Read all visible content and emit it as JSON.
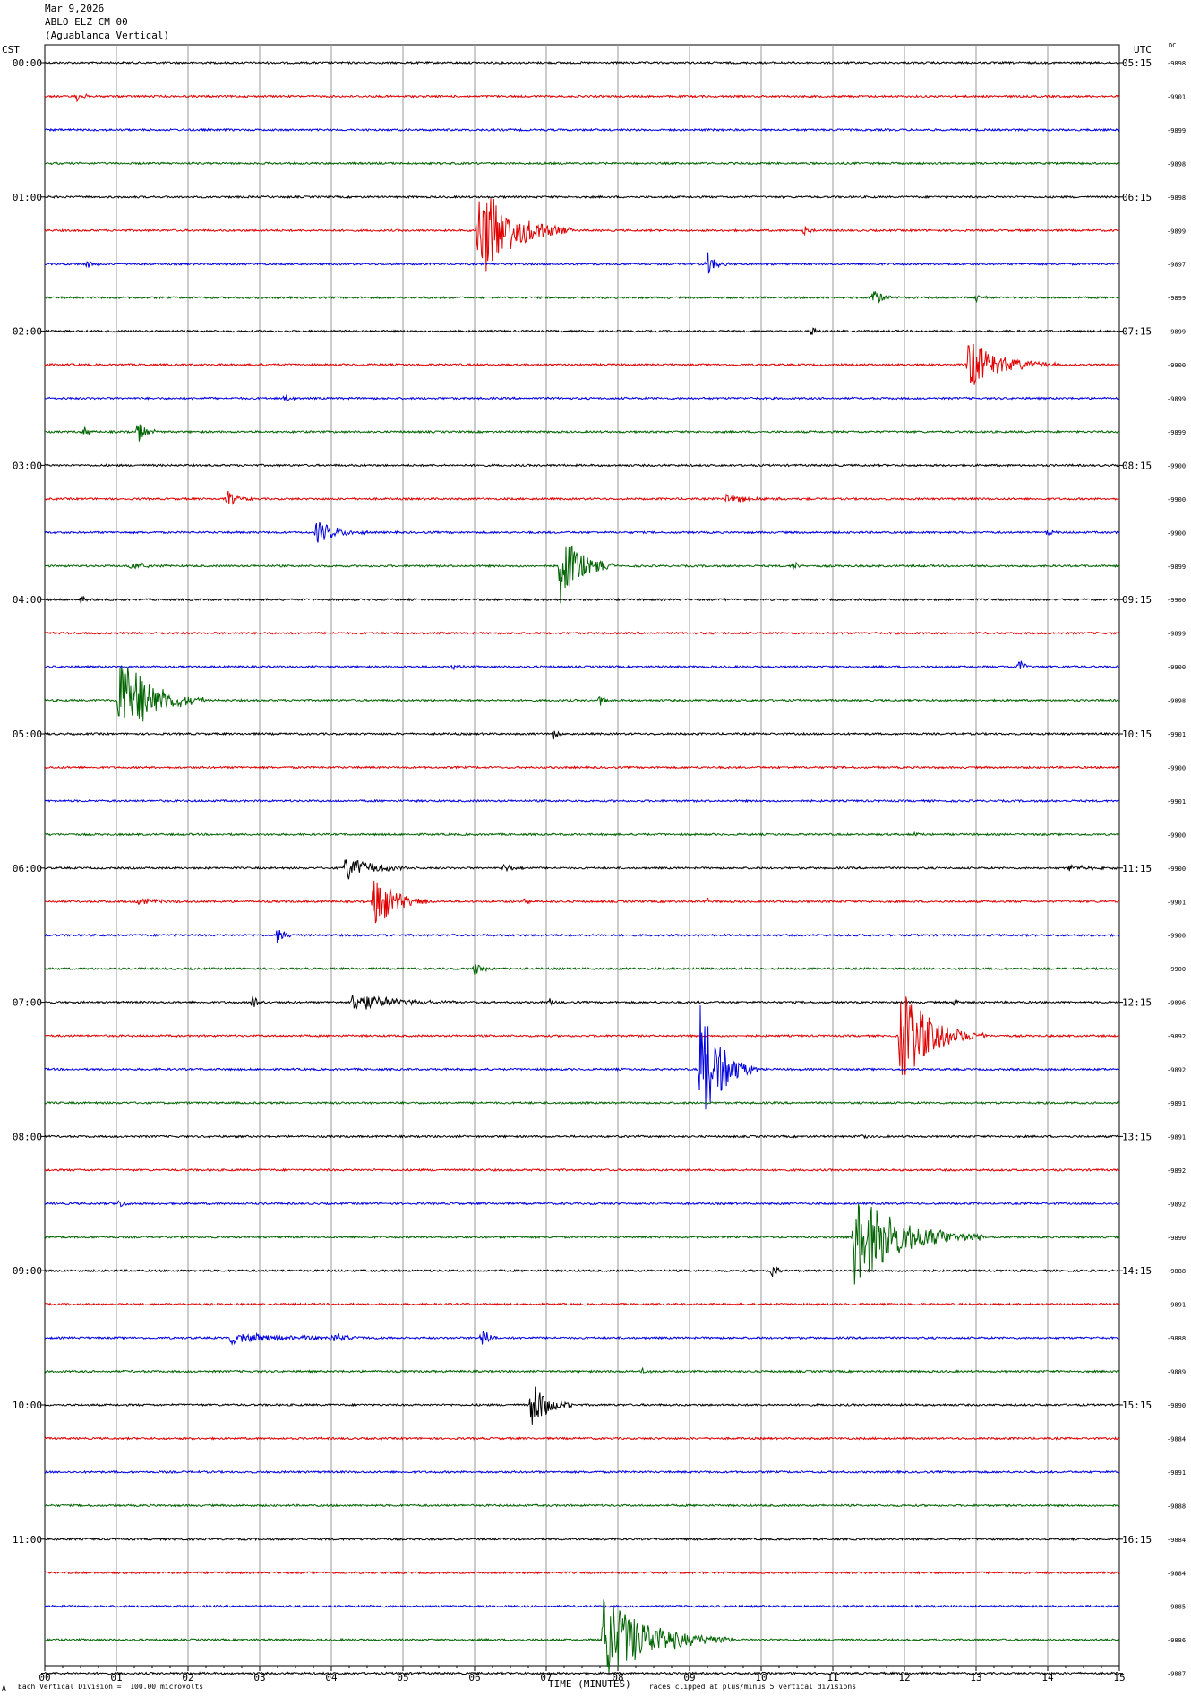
{
  "header": {
    "date": "Mar 9,2026",
    "station": "ABLO ELZ CM 00",
    "location": "(Aguablanca Vertical)"
  },
  "left_zone_label": "CST",
  "right_zone_label": "UTC",
  "dc_label": "DC",
  "footer": {
    "left_mark": "A",
    "scale_note": "Each Vertical Division =  100.00 microvolts",
    "clip_note": "Traces clipped at plus/minus 5 vertical divisions"
  },
  "colors": {
    "cycle": [
      "#000000",
      "#e00000",
      "#0000e0",
      "#006400"
    ],
    "grid": "#9a9a9a"
  },
  "chart_data": {
    "type": "line",
    "title": "",
    "xlabel": "TIME (MINUTES)",
    "ylabel": "",
    "xlim": [
      0,
      15
    ],
    "x_tick_labels": [
      "00",
      "01",
      "02",
      "03",
      "04",
      "05",
      "06",
      "07",
      "08",
      "09",
      "10",
      "11",
      "12",
      "13",
      "14",
      "15"
    ],
    "grid": true,
    "trace_interval_minutes": 15,
    "left_hour_labels": [
      "00:00",
      "01:00",
      "02:00",
      "03:00",
      "04:00",
      "05:00",
      "06:00",
      "07:00",
      "08:00",
      "09:00",
      "10:00",
      "11:00"
    ],
    "right_hour_labels": [
      "05:15",
      "06:15",
      "07:15",
      "08:15",
      "09:15",
      "10:15",
      "11:15",
      "12:15",
      "13:15",
      "14:15",
      "15:15",
      "16:15"
    ],
    "dc_offsets": [
      "-9898",
      "-9901",
      "-9899",
      "-9898",
      "-9898",
      "-9899",
      "-9897",
      "-9899",
      "-9899",
      "-9900",
      "-9899",
      "-9899",
      "-9900",
      "-9900",
      "-9900",
      "-9899",
      "-9900",
      "-9899",
      "-9900",
      "-9898",
      "-9901",
      "-9900",
      "-9901",
      "-9900",
      "-9900",
      "-9901",
      "-9900",
      "-9900",
      "-9896",
      "-9892",
      "-9892",
      "-9891",
      "-9891",
      "-9892",
      "-9892",
      "-9890",
      "-9888",
      "-9891",
      "-9888",
      "-9889",
      "-9890",
      "-9884",
      "-9891",
      "-9888",
      "-9884",
      "-9884",
      "-9885",
      "-9886",
      "-9887"
    ],
    "events": [
      {
        "trace": 1,
        "minute": 0.45,
        "amplitude": 6,
        "duration": 0.25
      },
      {
        "trace": 5,
        "minute": 6.05,
        "amplitude": 60,
        "duration": 1.3
      },
      {
        "trace": 5,
        "minute": 10.6,
        "amplitude": 7,
        "duration": 0.15
      },
      {
        "trace": 6,
        "minute": 0.6,
        "amplitude": 5,
        "duration": 0.2
      },
      {
        "trace": 6,
        "minute": 9.25,
        "amplitude": 14,
        "duration": 0.3
      },
      {
        "trace": 7,
        "minute": 11.55,
        "amplitude": 9,
        "duration": 0.5
      },
      {
        "trace": 7,
        "minute": 13.0,
        "amplitude": 5,
        "duration": 0.2
      },
      {
        "trace": 8,
        "minute": 10.7,
        "amplitude": 6,
        "duration": 0.2
      },
      {
        "trace": 9,
        "minute": 12.9,
        "amplitude": 30,
        "duration": 1.2
      },
      {
        "trace": 10,
        "minute": 3.35,
        "amplitude": 5,
        "duration": 0.2
      },
      {
        "trace": 11,
        "minute": 1.3,
        "amplitude": 14,
        "duration": 0.3
      },
      {
        "trace": 11,
        "minute": 0.55,
        "amplitude": 7,
        "duration": 0.2
      },
      {
        "trace": 13,
        "minute": 2.55,
        "amplitude": 10,
        "duration": 0.35
      },
      {
        "trace": 13,
        "minute": 9.5,
        "amplitude": 5,
        "duration": 1.2
      },
      {
        "trace": 14,
        "minute": 3.8,
        "amplitude": 13,
        "duration": 0.8
      },
      {
        "trace": 14,
        "minute": 14.0,
        "amplitude": 5,
        "duration": 0.15
      },
      {
        "trace": 15,
        "minute": 7.2,
        "amplitude": 42,
        "duration": 0.8
      },
      {
        "trace": 15,
        "minute": 1.2,
        "amplitude": 5,
        "duration": 0.7
      },
      {
        "trace": 15,
        "minute": 10.45,
        "amplitude": 6,
        "duration": 0.2
      },
      {
        "trace": 16,
        "minute": 0.5,
        "amplitude": 4,
        "duration": 0.2
      },
      {
        "trace": 18,
        "minute": 13.6,
        "amplitude": 12,
        "duration": 0.15
      },
      {
        "trace": 18,
        "minute": 5.7,
        "amplitude": 4,
        "duration": 0.2
      },
      {
        "trace": 19,
        "minute": 1.05,
        "amplitude": 55,
        "duration": 1.2
      },
      {
        "trace": 19,
        "minute": 7.75,
        "amplitude": 8,
        "duration": 0.2
      },
      {
        "trace": 20,
        "minute": 7.1,
        "amplitude": 6,
        "duration": 0.2
      },
      {
        "trace": 23,
        "minute": 12.1,
        "amplitude": 4,
        "duration": 0.2
      },
      {
        "trace": 24,
        "minute": 4.2,
        "amplitude": 14,
        "duration": 1.1
      },
      {
        "trace": 24,
        "minute": 6.4,
        "amplitude": 5,
        "duration": 0.4
      },
      {
        "trace": 24,
        "minute": 14.3,
        "amplitude": 4,
        "duration": 0.8
      },
      {
        "trace": 25,
        "minute": 4.6,
        "amplitude": 35,
        "duration": 0.8
      },
      {
        "trace": 25,
        "minute": 1.3,
        "amplitude": 4,
        "duration": 1.0
      },
      {
        "trace": 25,
        "minute": 6.7,
        "amplitude": 5,
        "duration": 0.2
      },
      {
        "trace": 25,
        "minute": 9.25,
        "amplitude": 6,
        "duration": 0.1
      },
      {
        "trace": 26,
        "minute": 3.25,
        "amplitude": 10,
        "duration": 0.3
      },
      {
        "trace": 27,
        "minute": 6.0,
        "amplitude": 8,
        "duration": 0.3
      },
      {
        "trace": 28,
        "minute": 4.3,
        "amplitude": 12,
        "duration": 1.5
      },
      {
        "trace": 28,
        "minute": 2.9,
        "amplitude": 8,
        "duration": 0.3
      },
      {
        "trace": 28,
        "minute": 12.7,
        "amplitude": 6,
        "duration": 0.15
      },
      {
        "trace": 28,
        "minute": 7.05,
        "amplitude": 5,
        "duration": 0.2
      },
      {
        "trace": 29,
        "minute": 11.95,
        "amplitude": 55,
        "duration": 1.2
      },
      {
        "trace": 30,
        "minute": 9.15,
        "amplitude": 75,
        "duration": 0.8
      },
      {
        "trace": 32,
        "minute": 11.4,
        "amplitude": 5,
        "duration": 0.15
      },
      {
        "trace": 34,
        "minute": 1.05,
        "amplitude": 6,
        "duration": 0.2
      },
      {
        "trace": 35,
        "minute": 11.3,
        "amplitude": 55,
        "duration": 1.8
      },
      {
        "trace": 36,
        "minute": 10.15,
        "amplitude": 9,
        "duration": 0.2
      },
      {
        "trace": 38,
        "minute": 2.6,
        "amplitude": 6,
        "duration": 2.5
      },
      {
        "trace": 38,
        "minute": 6.1,
        "amplitude": 12,
        "duration": 0.3
      },
      {
        "trace": 38,
        "minute": 4.0,
        "amplitude": 6,
        "duration": 0.6
      },
      {
        "trace": 39,
        "minute": 8.35,
        "amplitude": 4,
        "duration": 0.2
      },
      {
        "trace": 40,
        "minute": 6.8,
        "amplitude": 28,
        "duration": 0.6
      },
      {
        "trace": 47,
        "minute": 7.8,
        "amplitude": 50,
        "duration": 1.8
      }
    ]
  }
}
